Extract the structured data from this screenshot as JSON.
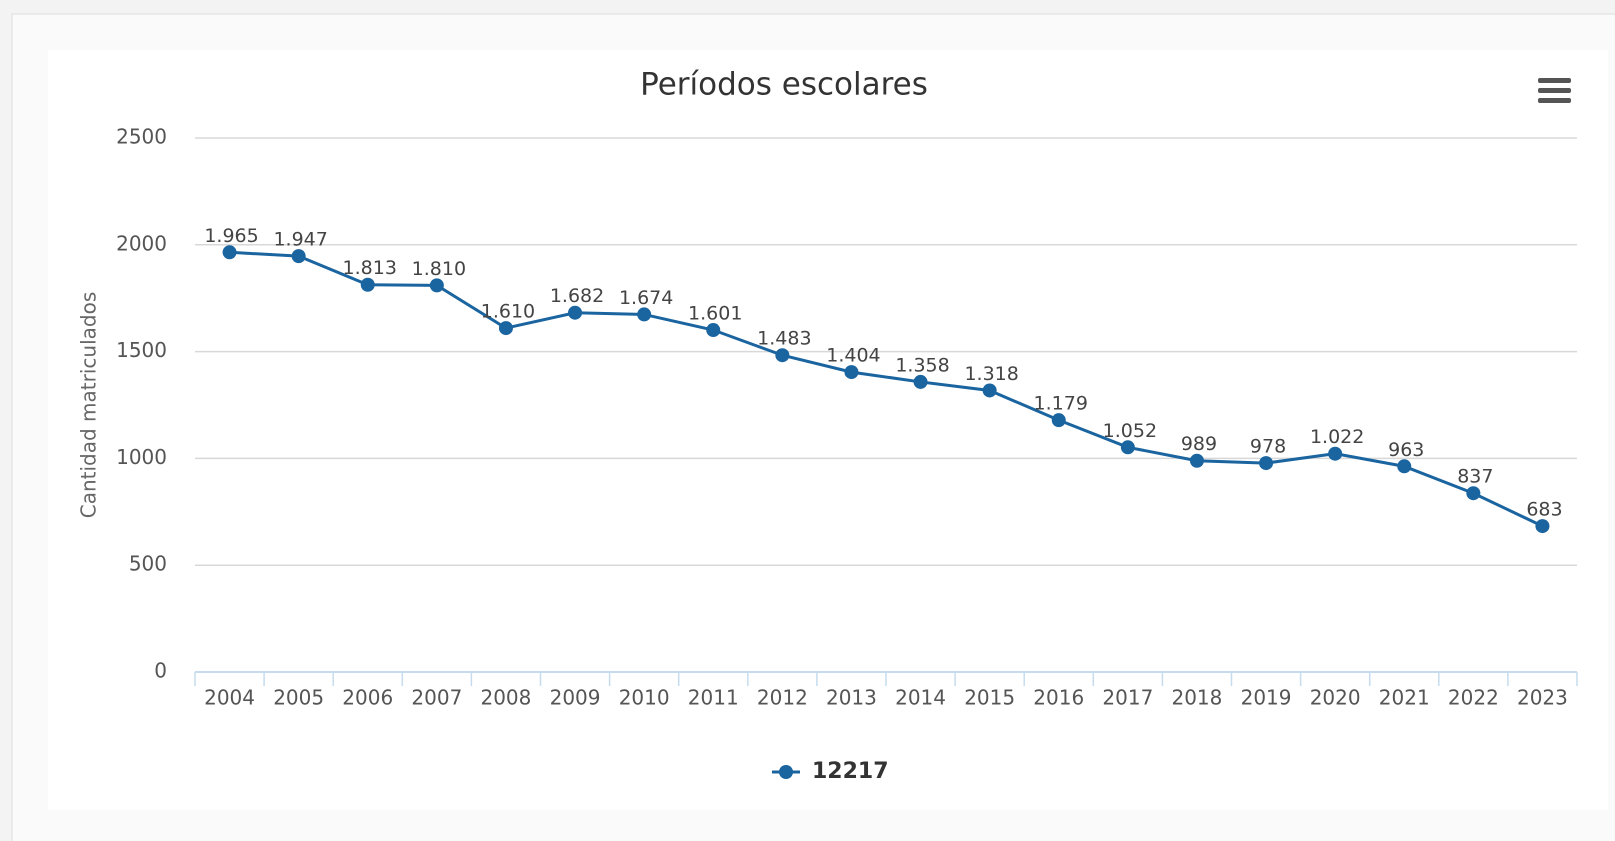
{
  "chart_data": {
    "type": "line",
    "title": "Períodos escolares",
    "y_label": "Cantidad matriculados",
    "categories": [
      "2004",
      "2005",
      "2006",
      "2007",
      "2008",
      "2009",
      "2010",
      "2011",
      "2012",
      "2013",
      "2014",
      "2015",
      "2016",
      "2017",
      "2018",
      "2019",
      "2020",
      "2021",
      "2022",
      "2023"
    ],
    "series": [
      {
        "name": "12217",
        "color": "#1a64a0",
        "values": [
          1965,
          1947,
          1813,
          1810,
          1610,
          1682,
          1674,
          1601,
          1483,
          1404,
          1358,
          1318,
          1179,
          1052,
          989,
          978,
          1022,
          963,
          837,
          683
        ],
        "value_labels": [
          "1.965",
          "1.947",
          "1.813",
          "1.810",
          "1.610",
          "1.682",
          "1.674",
          "1.601",
          "1.483",
          "1.404",
          "1.358",
          "1.318",
          "1.179",
          "1.052",
          "989",
          "978",
          "1.022",
          "963",
          "837",
          "683"
        ]
      }
    ],
    "ylim": [
      0,
      2500
    ],
    "yticks": [
      0,
      500,
      1000,
      1500,
      2000,
      2500
    ],
    "grid": true
  }
}
